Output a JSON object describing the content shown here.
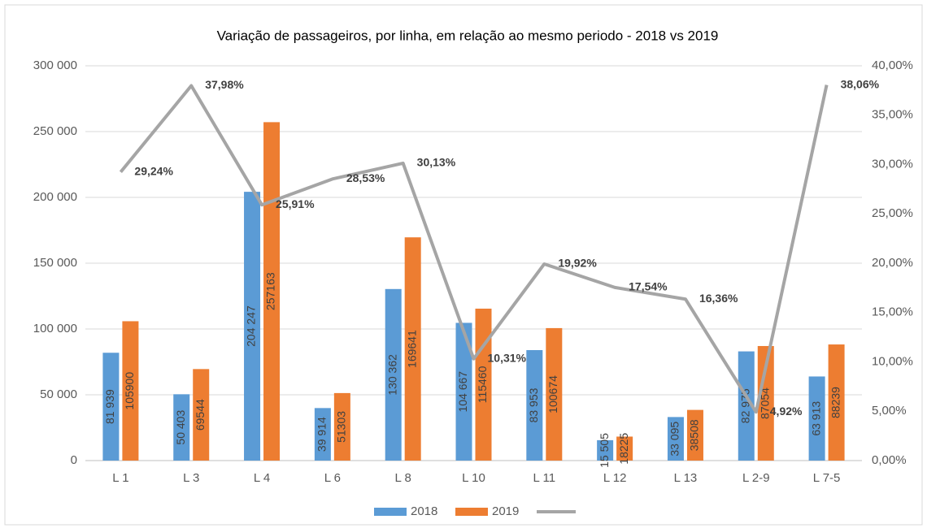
{
  "chart_data": {
    "type": "bar",
    "title": "Variação de passageiros, por linha, em relação ao mesmo periodo - 2018 vs 2019",
    "categories": [
      "L 1",
      "L 3",
      "L 4",
      "L 6",
      "L 8",
      "L 10",
      "L 11",
      "L 12",
      "L 13",
      "L 2-9",
      "L 7-5"
    ],
    "series": [
      {
        "name": "2018",
        "color": "#5b9bd5",
        "type": "bar",
        "values": [
          81939,
          50403,
          204247,
          39914,
          130362,
          104667,
          83953,
          15505,
          33095,
          82975,
          63913
        ],
        "value_labels": [
          "81 939",
          "50 403",
          "204 247",
          "39 914",
          "130 362",
          "104 667",
          "83 953",
          "15 505",
          "33 095",
          "82 975",
          "63 913"
        ]
      },
      {
        "name": "2019",
        "color": "#ed7d31",
        "type": "bar",
        "values": [
          105900,
          69544,
          257163,
          51303,
          169641,
          115460,
          100674,
          18225,
          38508,
          87054,
          88239
        ]
      },
      {
        "color": "#a5a5a5",
        "type": "line",
        "axis": "y2",
        "values": [
          29.24,
          37.98,
          25.91,
          28.53,
          30.13,
          10.31,
          19.92,
          17.54,
          16.36,
          4.92,
          38.06
        ],
        "value_labels": [
          "29,24%",
          "37,98%",
          "25,91%",
          "28,53%",
          "30,13%",
          "10,31%",
          "19,92%",
          "17,54%",
          "16,36%",
          "4,92%",
          "38,06%"
        ]
      }
    ],
    "ylim": [
      0,
      300000
    ],
    "yticks": [
      0,
      {
        "value": 50000,
        "label": "50 000"
      },
      {
        "value": 100000,
        "label": "100 000"
      },
      {
        "value": 150000,
        "label": "150 000"
      },
      {
        "value": 200000,
        "label": "200 000"
      },
      {
        "value": 250000,
        "label": "250 000"
      },
      {
        "value": 300000,
        "label": "300 000"
      }
    ],
    "y2lim": [
      0,
      40
    ],
    "y2ticks": [
      {
        "value": 0,
        "label": "0,00%"
      },
      {
        "value": 5,
        "label": "5,00%"
      },
      {
        "value": 10,
        "label": "10,00%"
      },
      {
        "value": 15,
        "label": "15,00%"
      },
      {
        "value": 20,
        "label": "20,00%"
      },
      {
        "value": 25,
        "label": "25,00%"
      },
      {
        "value": 30,
        "label": "30,00%"
      },
      {
        "value": 35,
        "label": "35,00%"
      },
      {
        "value": 40,
        "label": "40,00%"
      }
    ],
    "grid": true,
    "legend": "bottom"
  }
}
